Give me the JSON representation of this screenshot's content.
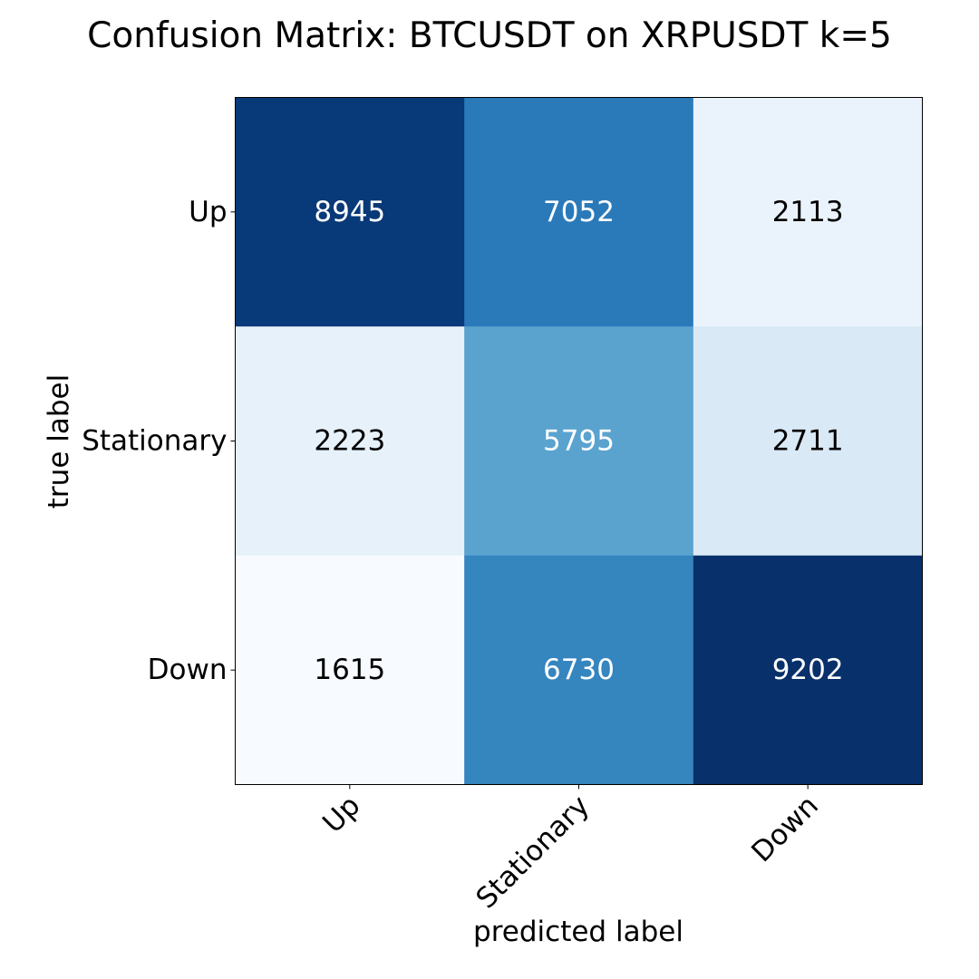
{
  "chart_data": {
    "type": "heatmap",
    "title": "Confusion Matrix: BTCUSDT on XRPUSDT k=5",
    "xlabel": "predicted label",
    "ylabel": "true label",
    "x_categories": [
      "Up",
      "Stationary",
      "Down"
    ],
    "y_categories": [
      "Up",
      "Stationary",
      "Down"
    ],
    "values": [
      [
        8945,
        7052,
        2113
      ],
      [
        2223,
        5795,
        2711
      ],
      [
        1615,
        6730,
        9202
      ]
    ],
    "colormap": "Blues",
    "colormap_stops": [
      "#f7fbff",
      "#deebf7",
      "#c6dbef",
      "#9ecae1",
      "#6baed6",
      "#4292c6",
      "#2171b5",
      "#08519c",
      "#08306b"
    ],
    "value_range": [
      1615,
      9202
    ],
    "text_color_dark": "#000000",
    "text_color_light": "#ffffff"
  }
}
